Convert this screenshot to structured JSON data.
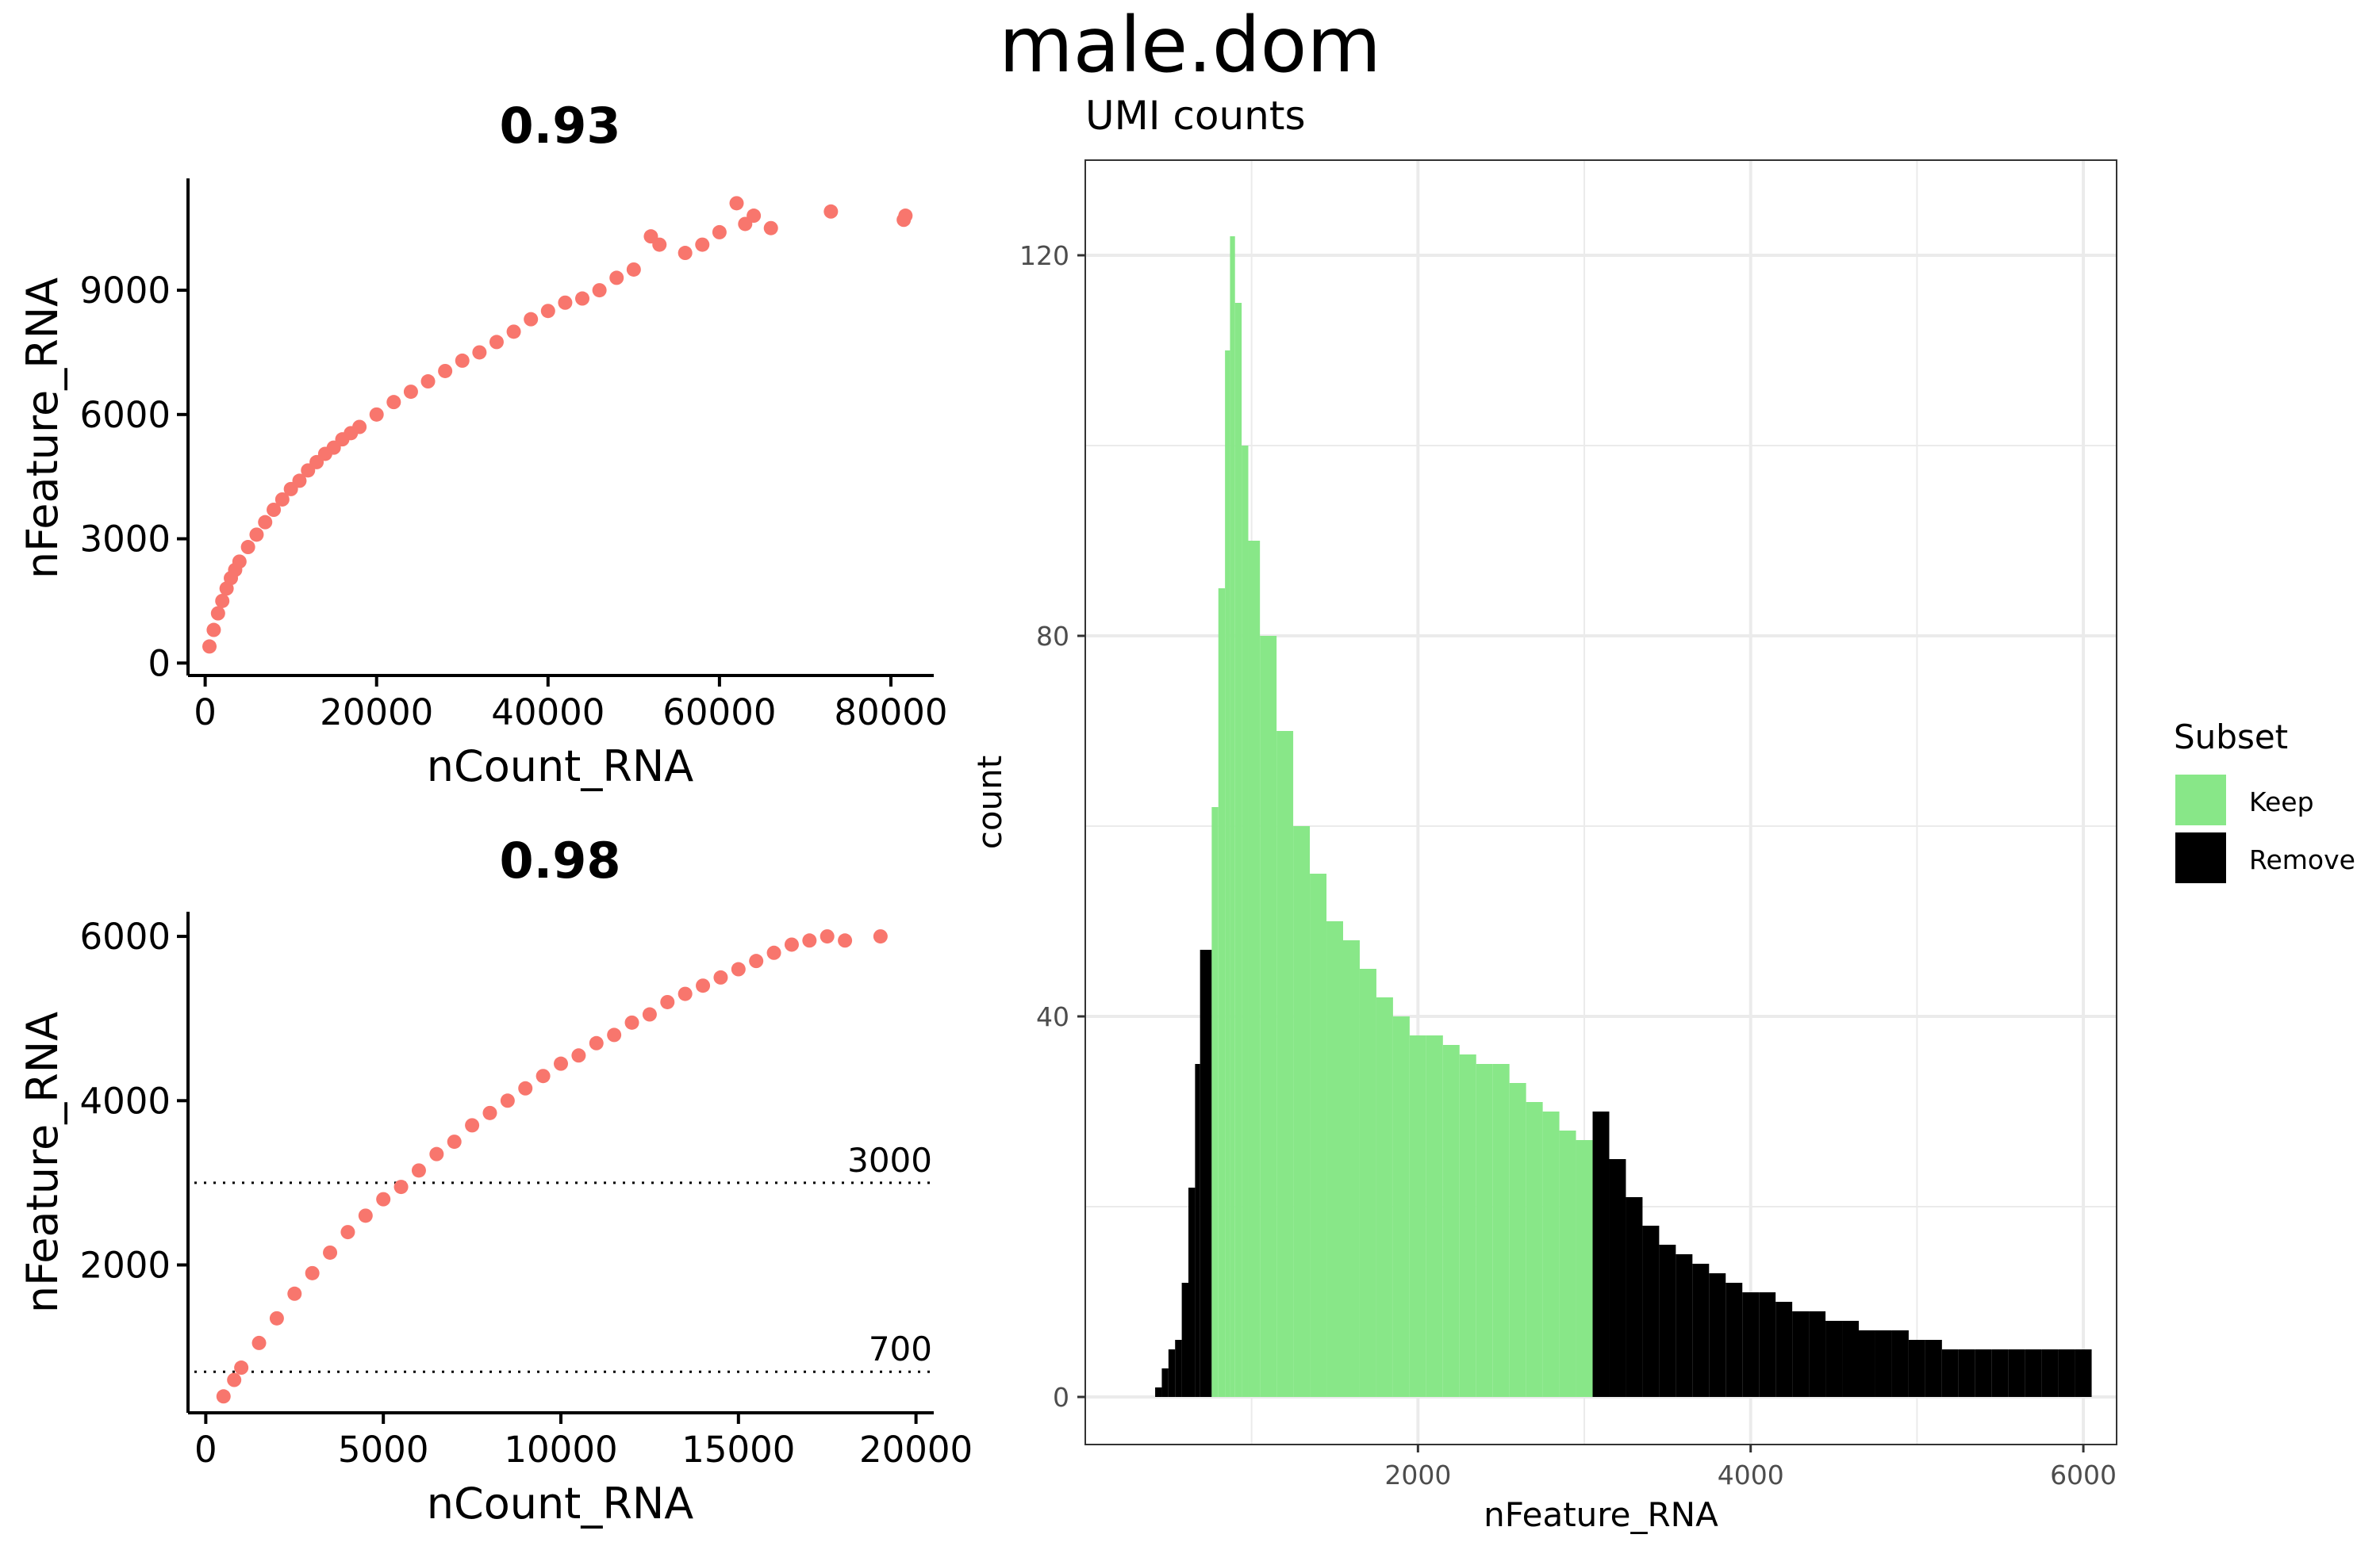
{
  "page": {
    "title": "male.dom"
  },
  "chart_data": [
    {
      "id": "scatter1",
      "type": "scatter",
      "title": "0.93",
      "xlabel": "nCount_RNA",
      "ylabel": "nFeature_RNA",
      "xlim": [
        -2000,
        85000
      ],
      "ylim": [
        -300,
        11700
      ],
      "xticks": [
        0,
        20000,
        40000,
        60000,
        80000
      ],
      "yticks": [
        0,
        3000,
        6000,
        9000
      ],
      "point_color": "#f8766d",
      "points": [
        [
          500,
          400
        ],
        [
          1000,
          800
        ],
        [
          1500,
          1200
        ],
        [
          2000,
          1500
        ],
        [
          2500,
          1800
        ],
        [
          3000,
          2050
        ],
        [
          3500,
          2250
        ],
        [
          4000,
          2450
        ],
        [
          5000,
          2800
        ],
        [
          6000,
          3100
        ],
        [
          7000,
          3400
        ],
        [
          8000,
          3700
        ],
        [
          9000,
          3950
        ],
        [
          10000,
          4200
        ],
        [
          11000,
          4400
        ],
        [
          12000,
          4650
        ],
        [
          13000,
          4850
        ],
        [
          14000,
          5050
        ],
        [
          15000,
          5200
        ],
        [
          16000,
          5400
        ],
        [
          17000,
          5550
        ],
        [
          18000,
          5700
        ],
        [
          20000,
          6000
        ],
        [
          22000,
          6300
        ],
        [
          24000,
          6550
        ],
        [
          26000,
          6800
        ],
        [
          28000,
          7050
        ],
        [
          30000,
          7300
        ],
        [
          32000,
          7500
        ],
        [
          34000,
          7750
        ],
        [
          36000,
          8000
        ],
        [
          38000,
          8300
        ],
        [
          40000,
          8500
        ],
        [
          42000,
          8700
        ],
        [
          44000,
          8800
        ],
        [
          46000,
          9000
        ],
        [
          48000,
          9300
        ],
        [
          50000,
          9500
        ],
        [
          52000,
          10300
        ],
        [
          53000,
          10100
        ],
        [
          56000,
          9900
        ],
        [
          58000,
          10100
        ],
        [
          60000,
          10400
        ],
        [
          62000,
          11100
        ],
        [
          63000,
          10600
        ],
        [
          64000,
          10800
        ],
        [
          66000,
          10500
        ],
        [
          73000,
          10900
        ],
        [
          81500,
          10700
        ],
        [
          81700,
          10800
        ]
      ]
    },
    {
      "id": "scatter2",
      "type": "scatter",
      "title": "0.98",
      "xlabel": "nCount_RNA",
      "ylabel": "nFeature_RNA",
      "xlim": [
        -500,
        20500
      ],
      "ylim": [
        200,
        6300
      ],
      "xticks": [
        0,
        5000,
        10000,
        15000,
        20000
      ],
      "yticks": [
        2000,
        4000,
        6000
      ],
      "point_color": "#f8766d",
      "hlines": [
        {
          "y": 3000,
          "label": "3000"
        },
        {
          "y": 700,
          "label": "700"
        }
      ],
      "points": [
        [
          500,
          400
        ],
        [
          800,
          600
        ],
        [
          1000,
          750
        ],
        [
          1500,
          1050
        ],
        [
          2000,
          1350
        ],
        [
          2500,
          1650
        ],
        [
          3000,
          1900
        ],
        [
          3500,
          2150
        ],
        [
          4000,
          2400
        ],
        [
          4500,
          2600
        ],
        [
          5000,
          2800
        ],
        [
          5500,
          2950
        ],
        [
          6000,
          3150
        ],
        [
          6500,
          3350
        ],
        [
          7000,
          3500
        ],
        [
          7500,
          3700
        ],
        [
          8000,
          3850
        ],
        [
          8500,
          4000
        ],
        [
          9000,
          4150
        ],
        [
          9500,
          4300
        ],
        [
          10000,
          4450
        ],
        [
          10500,
          4550
        ],
        [
          11000,
          4700
        ],
        [
          11500,
          4800
        ],
        [
          12000,
          4950
        ],
        [
          12500,
          5050
        ],
        [
          13000,
          5200
        ],
        [
          13500,
          5300
        ],
        [
          14000,
          5400
        ],
        [
          14500,
          5500
        ],
        [
          15000,
          5600
        ],
        [
          15500,
          5700
        ],
        [
          16000,
          5800
        ],
        [
          16500,
          5900
        ],
        [
          17000,
          5950
        ],
        [
          17500,
          6000
        ],
        [
          18000,
          5950
        ],
        [
          19000,
          6000
        ]
      ]
    },
    {
      "id": "hist",
      "type": "bar",
      "title": "UMI counts",
      "xlabel": "nFeature_RNA",
      "ylabel": "count",
      "xlim": [
        0,
        6200
      ],
      "ylim": [
        -5,
        130
      ],
      "xticks": [
        2000,
        4000,
        6000
      ],
      "yticks": [
        0,
        40,
        80,
        120
      ],
      "keep_range": [
        700,
        3000
      ],
      "legend": {
        "title": "Subset",
        "position": "right",
        "entries": [
          {
            "name": "Keep",
            "color": "#88e788"
          },
          {
            "name": "Remove",
            "color": "#000000"
          }
        ]
      },
      "bins": [
        [
          420,
          1
        ],
        [
          460,
          3
        ],
        [
          500,
          5
        ],
        [
          540,
          6
        ],
        [
          580,
          12
        ],
        [
          620,
          22
        ],
        [
          660,
          35
        ],
        [
          690,
          47
        ],
        [
          760,
          62
        ],
        [
          800,
          85
        ],
        [
          840,
          110
        ],
        [
          870,
          122
        ],
        [
          900,
          115
        ],
        [
          940,
          100
        ],
        [
          980,
          90
        ],
        [
          1050,
          80
        ],
        [
          1150,
          70
        ],
        [
          1250,
          60
        ],
        [
          1350,
          55
        ],
        [
          1450,
          50
        ],
        [
          1550,
          48
        ],
        [
          1650,
          45
        ],
        [
          1750,
          42
        ],
        [
          1850,
          40
        ],
        [
          1950,
          38
        ],
        [
          2050,
          38
        ],
        [
          2150,
          37
        ],
        [
          2250,
          36
        ],
        [
          2350,
          35
        ],
        [
          2450,
          35
        ],
        [
          2550,
          33
        ],
        [
          2650,
          31
        ],
        [
          2750,
          30
        ],
        [
          2850,
          28
        ],
        [
          2950,
          27
        ],
        [
          3050,
          30
        ],
        [
          3150,
          25
        ],
        [
          3250,
          21
        ],
        [
          3350,
          18
        ],
        [
          3450,
          16
        ],
        [
          3550,
          15
        ],
        [
          3650,
          14
        ],
        [
          3750,
          13
        ],
        [
          3850,
          12
        ],
        [
          3950,
          11
        ],
        [
          4050,
          11
        ],
        [
          4150,
          10
        ],
        [
          4250,
          9
        ],
        [
          4350,
          9
        ],
        [
          4450,
          8
        ],
        [
          4550,
          8
        ],
        [
          4650,
          7
        ],
        [
          4750,
          7
        ],
        [
          4850,
          7
        ],
        [
          4950,
          6
        ],
        [
          5050,
          6
        ],
        [
          5150,
          5
        ],
        [
          5250,
          5
        ],
        [
          5350,
          5
        ],
        [
          5450,
          5
        ],
        [
          5550,
          5
        ],
        [
          5650,
          5
        ],
        [
          5750,
          5
        ],
        [
          5850,
          5
        ],
        [
          5950,
          5
        ]
      ]
    }
  ]
}
